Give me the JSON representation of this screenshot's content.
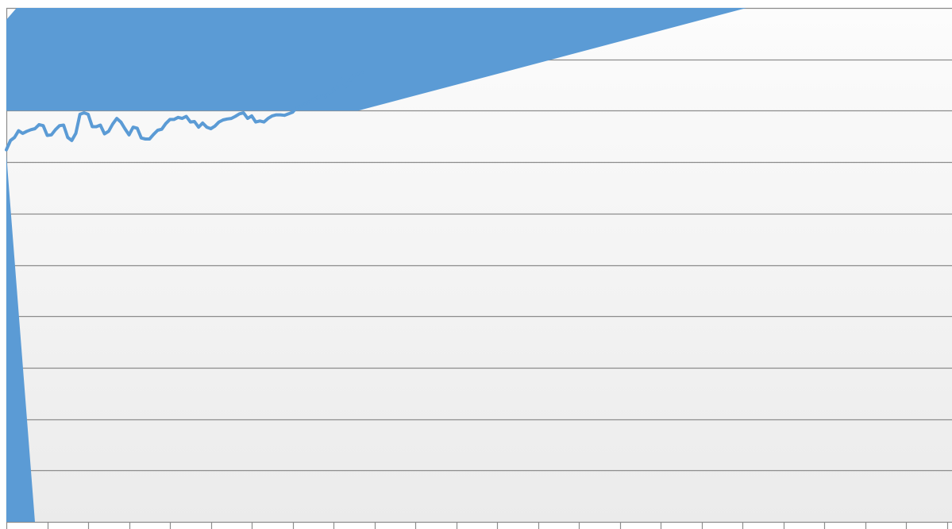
{
  "chart_data": {
    "type": "line",
    "title": "",
    "xlabel": "",
    "ylabel": "",
    "grid": true,
    "legend": "none",
    "colors": {
      "series": "#5b9bd5",
      "grid": "#8c8c8c",
      "background_top": "#fcfcfc",
      "background_bottom": "#ebebeb"
    },
    "ylim": [
      0,
      100
    ],
    "yticks": [
      0,
      10,
      20,
      30,
      40,
      50,
      60,
      70,
      80,
      90,
      100
    ],
    "x_category_count": 23,
    "series": [
      {
        "name": "",
        "x": [
          0,
          0.1,
          0.2,
          0.3,
          0.4,
          0.5,
          0.6,
          0.7,
          0.8,
          0.9,
          1,
          1.1,
          1.2,
          1.3,
          1.4,
          1.5,
          1.6,
          1.7,
          1.8,
          1.9,
          2,
          2.1,
          2.2,
          2.3,
          2.4,
          2.5,
          2.6,
          2.7,
          2.8,
          2.9,
          3,
          3.1,
          3.2,
          3.3,
          3.4,
          3.5,
          3.6,
          3.7,
          3.8,
          3.9,
          4,
          4.1,
          4.2,
          4.3,
          4.4,
          4.5,
          4.6,
          4.7,
          4.8,
          4.9,
          5,
          5.1,
          5.2,
          5.3,
          5.4,
          5.5,
          5.6,
          5.7,
          5.8,
          5.9,
          6,
          6.1,
          6.2,
          6.3,
          6.4,
          6.5,
          6.6,
          6.7,
          6.8,
          6.9,
          7,
          7.1,
          7.2,
          7.3,
          7.4,
          7.5,
          7.6,
          7.7,
          7.8,
          7.9,
          8,
          8.1,
          8.2,
          8.3,
          8.4,
          8.5,
          8.6,
          8.7
        ],
        "values": [
          72.4,
          74.2,
          74.8,
          76.1,
          75.6,
          76,
          76.3,
          76.5,
          77.3,
          77.1,
          75.2,
          75.3,
          76.3,
          77.1,
          77.2,
          74.8,
          74.2,
          75.6,
          79.3,
          79.6,
          79.3,
          76.9,
          76.9,
          77.2,
          75.5,
          76,
          77.4,
          78.5,
          77.8,
          76.5,
          75.3,
          76.8,
          76.6,
          74.7,
          74.5,
          74.5,
          75.4,
          76.2,
          76.4,
          77.5,
          78.3,
          78.3,
          78.7,
          78.5,
          78.9,
          77.8,
          77.9,
          76.8,
          77.6,
          76.8,
          76.5,
          77,
          77.8,
          78.2,
          78.4,
          78.5,
          78.9,
          79.4,
          79.6,
          78.5,
          79,
          77.8,
          78,
          77.8,
          78.5,
          79,
          79.2,
          79.2,
          79.1,
          79.4,
          79.7,
          80.6,
          80.9,
          81.3,
          81.7,
          82.1,
          82.5,
          83,
          82.7,
          83.5,
          84.1,
          84.6,
          86.2,
          84.7,
          85.9,
          86.9,
          87.1,
          87.5
        ]
      }
    ],
    "extra_marks": [
      {
        "type": "polygon",
        "points": [
          [
            0,
            97.7
          ],
          [
            0.25,
            100
          ],
          [
            18.1,
            100
          ],
          [
            8.6,
            80
          ],
          [
            0,
            80
          ]
        ]
      },
      {
        "type": "polygon",
        "points": [
          [
            0,
            71.5
          ],
          [
            0.7,
            0
          ],
          [
            0,
            0
          ]
        ]
      }
    ]
  }
}
